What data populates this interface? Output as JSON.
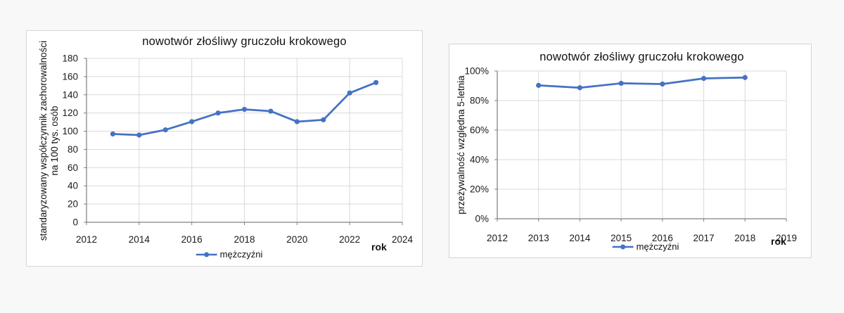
{
  "page": {
    "background_color": "#f8f8f8",
    "panel_background": "#ffffff",
    "panel_border_color": "#d5d5d5"
  },
  "colors": {
    "series_blue": "#4472C4",
    "gridline": "#d9d9d9",
    "axis_line": "#808080",
    "text": "#1a1a1a"
  },
  "chart_data": [
    {
      "type": "line",
      "title": "nowotwór złośliwy gruczołu krokowego",
      "ylabel": "standaryzowany współczynnik zachorowalności na 100 tys. osób",
      "ylabel_lines": [
        "standaryzowany współczynnik zachorowalności",
        "na 100 tys. osób"
      ],
      "xlabel": "rok",
      "xlim": [
        2012,
        2024
      ],
      "xstep": 2,
      "ylim": [
        0,
        180
      ],
      "ystep": 20,
      "y_tick_suffix": "",
      "grid": true,
      "legend_position": "bottom",
      "series": [
        {
          "name": "mężczyźni",
          "color": "#4472C4",
          "x": [
            2013,
            2014,
            2015,
            2016,
            2017,
            2018,
            2019,
            2020,
            2021,
            2022,
            2023
          ],
          "values": [
            97,
            95.8,
            101.5,
            110.5,
            120,
            124,
            122,
            110.5,
            112.5,
            142,
            153.5
          ]
        }
      ]
    },
    {
      "type": "line",
      "title": "nowotwór złośliwy gruczołu krokowego",
      "ylabel": "przeżywalność względna 5-letnia",
      "ylabel_lines": [
        "przeżywalność względna 5-letnia"
      ],
      "xlabel": "rok",
      "xlim": [
        2012,
        2019
      ],
      "xstep": 1,
      "ylim": [
        0,
        100
      ],
      "ystep": 20,
      "y_tick_suffix": "%",
      "grid": true,
      "legend_position": "bottom",
      "series": [
        {
          "name": "mężczyźni",
          "color": "#4472C4",
          "x": [
            2013,
            2014,
            2015,
            2016,
            2017,
            2018
          ],
          "values": [
            90.3,
            88.7,
            91.7,
            91.2,
            95,
            95.6
          ]
        }
      ]
    }
  ]
}
